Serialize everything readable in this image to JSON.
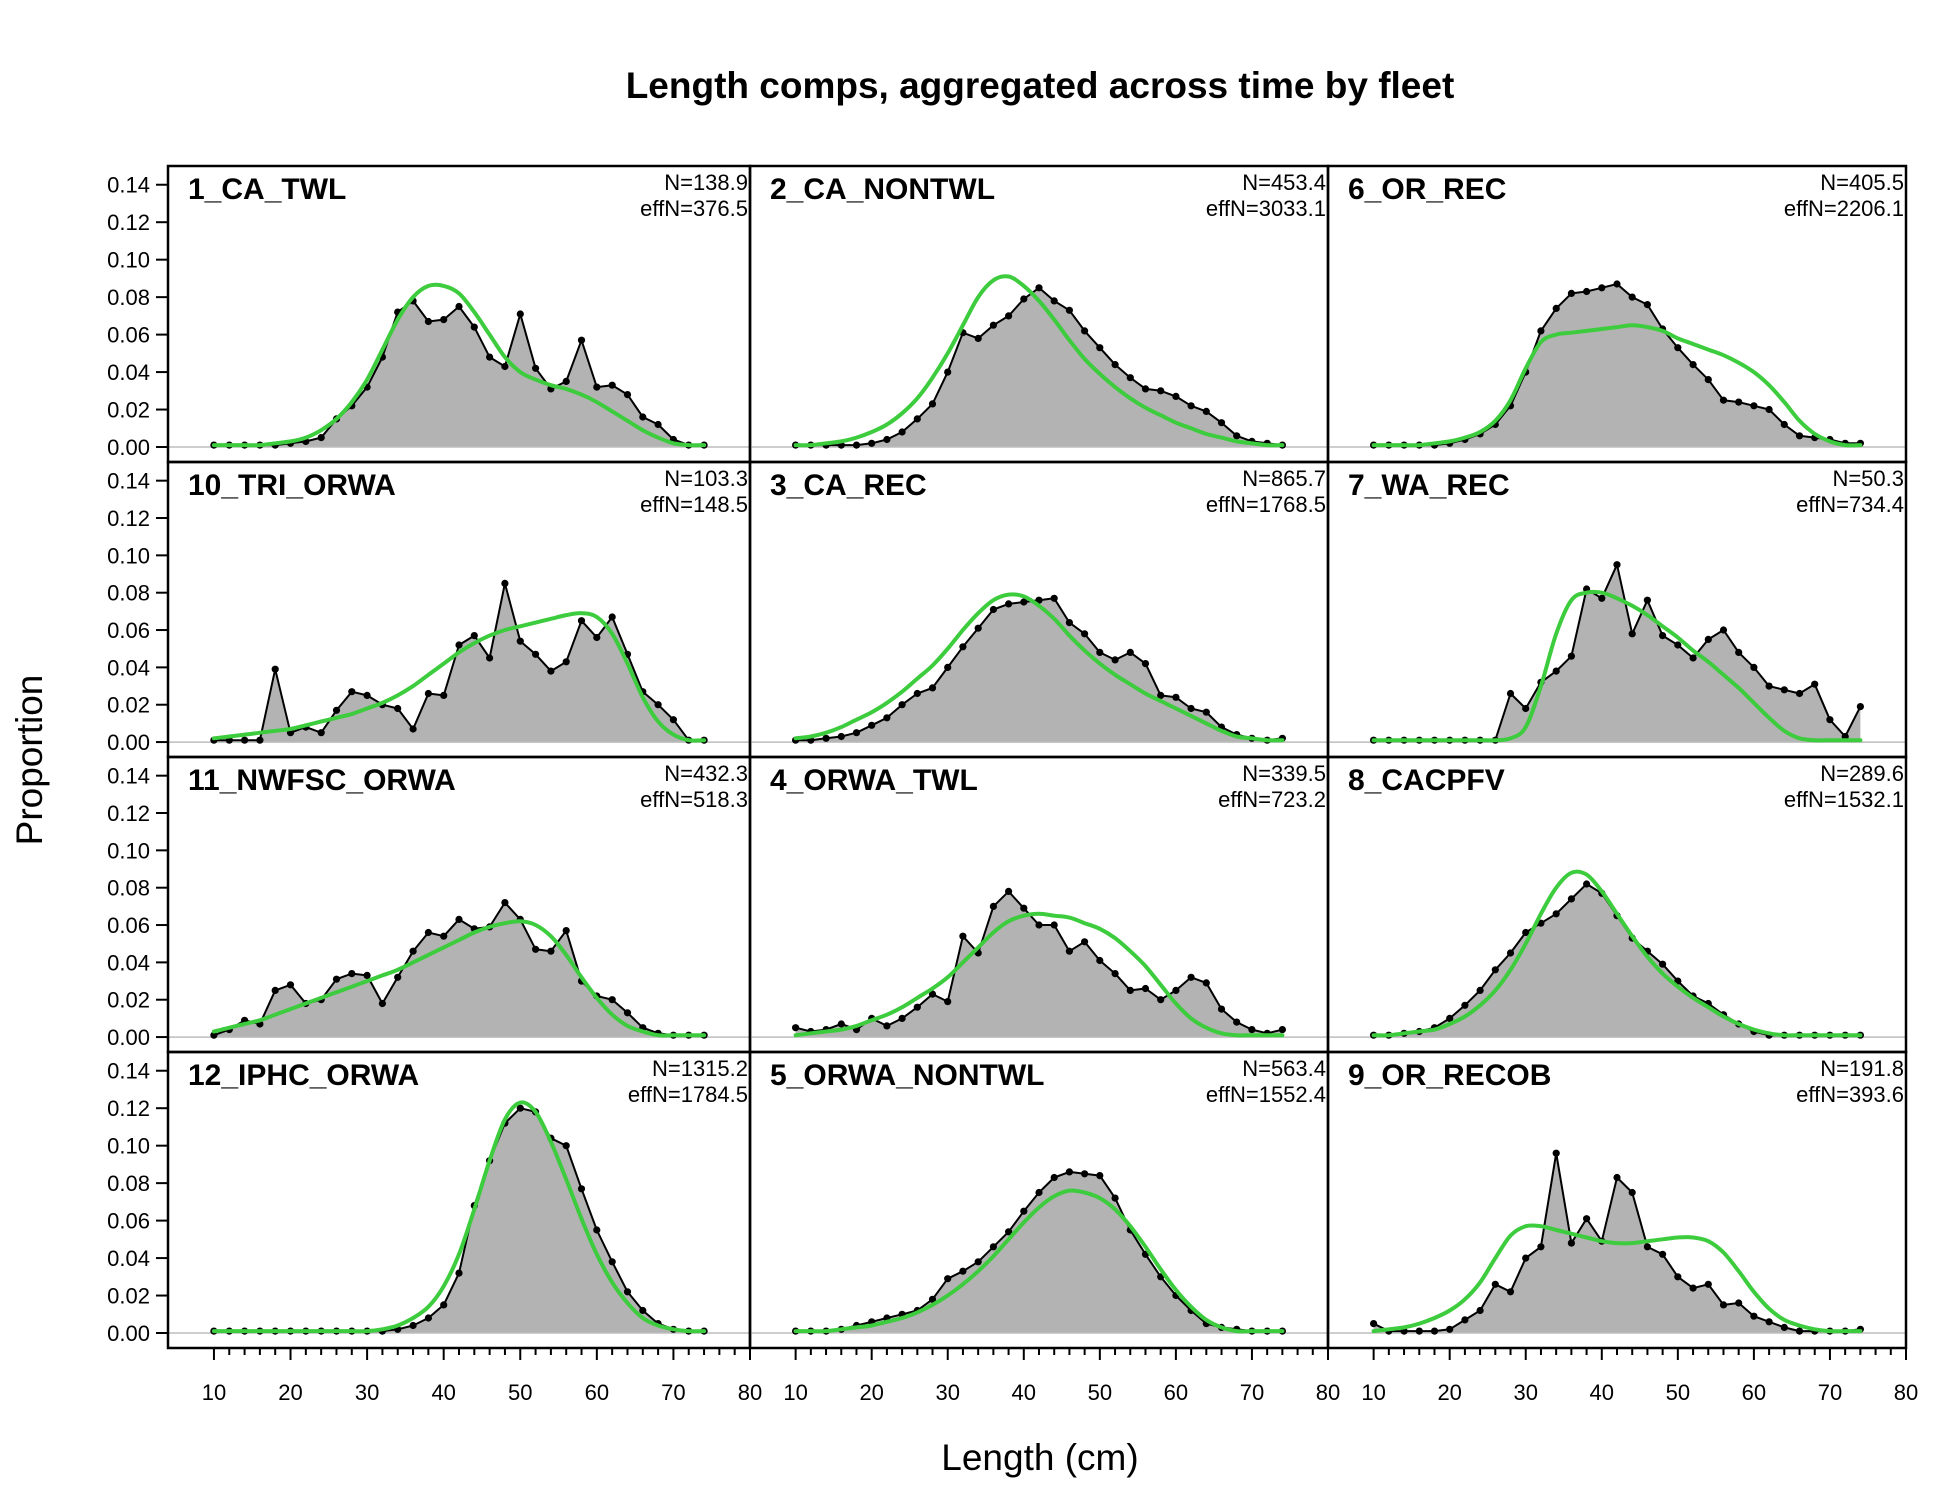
{
  "chart_data": {
    "type": "area",
    "title": "Length comps, aggregated across time by fleet",
    "xlabel": "Length (cm)",
    "ylabel": "Proportion",
    "xlim": [
      4,
      80
    ],
    "ylim": [
      -0.008,
      0.15
    ],
    "x_ticks": [
      10,
      20,
      30,
      40,
      50,
      60,
      70,
      80
    ],
    "y_ticks": [
      "0.00",
      "0.02",
      "0.04",
      "0.06",
      "0.08",
      "0.10",
      "0.12",
      "0.14"
    ],
    "x": [
      10,
      12,
      14,
      16,
      18,
      20,
      22,
      24,
      26,
      28,
      30,
      32,
      34,
      36,
      38,
      40,
      42,
      44,
      46,
      48,
      50,
      52,
      54,
      56,
      58,
      60,
      62,
      64,
      66,
      68,
      70,
      72,
      74
    ],
    "layout": "4 rows x 3 columns",
    "panels": [
      {
        "label": "1_CA_TWL",
        "n": "N=138.9",
        "effn": "effN=376.5",
        "observed": [
          0.001,
          0.001,
          0.001,
          0.001,
          0.001,
          0.002,
          0.003,
          0.005,
          0.015,
          0.022,
          0.032,
          0.048,
          0.072,
          0.078,
          0.067,
          0.068,
          0.075,
          0.064,
          0.048,
          0.043,
          0.071,
          0.042,
          0.031,
          0.035,
          0.057,
          0.032,
          0.033,
          0.028,
          0.016,
          0.012,
          0.004,
          0.001,
          0.001
        ],
        "expected": [
          0.001,
          0.001,
          0.001,
          0.001,
          0.002,
          0.003,
          0.005,
          0.009,
          0.015,
          0.024,
          0.036,
          0.052,
          0.068,
          0.08,
          0.086,
          0.086,
          0.082,
          0.072,
          0.06,
          0.048,
          0.04,
          0.036,
          0.033,
          0.031,
          0.028,
          0.024,
          0.019,
          0.014,
          0.009,
          0.005,
          0.002,
          0.001,
          0.001
        ]
      },
      {
        "label": "2_CA_NONTWL",
        "n": "N=453.4",
        "effn": "effN=3033.1",
        "observed": [
          0.001,
          0.001,
          0.001,
          0.001,
          0.001,
          0.002,
          0.004,
          0.008,
          0.015,
          0.023,
          0.04,
          0.061,
          0.058,
          0.065,
          0.07,
          0.079,
          0.085,
          0.078,
          0.073,
          0.062,
          0.053,
          0.044,
          0.037,
          0.031,
          0.03,
          0.027,
          0.022,
          0.019,
          0.013,
          0.006,
          0.003,
          0.002,
          0.001
        ],
        "expected": [
          0.001,
          0.001,
          0.002,
          0.003,
          0.005,
          0.008,
          0.012,
          0.018,
          0.026,
          0.037,
          0.05,
          0.065,
          0.08,
          0.089,
          0.091,
          0.086,
          0.078,
          0.068,
          0.057,
          0.047,
          0.039,
          0.032,
          0.026,
          0.021,
          0.017,
          0.013,
          0.01,
          0.007,
          0.005,
          0.003,
          0.002,
          0.001,
          0.001
        ]
      },
      {
        "label": "6_OR_REC",
        "n": "N=405.5",
        "effn": "effN=2206.1",
        "observed": [
          0.001,
          0.001,
          0.001,
          0.001,
          0.001,
          0.002,
          0.004,
          0.007,
          0.012,
          0.022,
          0.04,
          0.062,
          0.074,
          0.082,
          0.083,
          0.085,
          0.087,
          0.08,
          0.076,
          0.063,
          0.053,
          0.044,
          0.036,
          0.025,
          0.024,
          0.022,
          0.02,
          0.012,
          0.006,
          0.005,
          0.004,
          0.002,
          0.002
        ],
        "expected": [
          0.001,
          0.001,
          0.001,
          0.001,
          0.002,
          0.003,
          0.005,
          0.008,
          0.014,
          0.025,
          0.042,
          0.056,
          0.06,
          0.061,
          0.062,
          0.063,
          0.064,
          0.065,
          0.064,
          0.062,
          0.058,
          0.055,
          0.052,
          0.049,
          0.045,
          0.04,
          0.033,
          0.024,
          0.014,
          0.007,
          0.003,
          0.001,
          0.001
        ]
      },
      {
        "label": "10_TRI_ORWA",
        "n": "N=103.3",
        "effn": "effN=148.5",
        "observed": [
          0.001,
          0.001,
          0.001,
          0.001,
          0.039,
          0.005,
          0.008,
          0.005,
          0.017,
          0.027,
          0.025,
          0.02,
          0.018,
          0.007,
          0.026,
          0.025,
          0.052,
          0.057,
          0.045,
          0.085,
          0.054,
          0.047,
          0.038,
          0.043,
          0.065,
          0.056,
          0.067,
          0.047,
          0.027,
          0.02,
          0.012,
          0.001,
          0.001
        ],
        "expected": [
          0.002,
          0.003,
          0.004,
          0.005,
          0.006,
          0.007,
          0.009,
          0.011,
          0.013,
          0.015,
          0.018,
          0.021,
          0.025,
          0.03,
          0.036,
          0.042,
          0.048,
          0.053,
          0.057,
          0.06,
          0.062,
          0.064,
          0.066,
          0.068,
          0.069,
          0.067,
          0.058,
          0.042,
          0.024,
          0.011,
          0.004,
          0.001,
          0.001
        ]
      },
      {
        "label": "3_CA_REC",
        "n": "N=865.7",
        "effn": "effN=1768.5",
        "observed": [
          0.001,
          0.001,
          0.002,
          0.003,
          0.005,
          0.009,
          0.013,
          0.02,
          0.026,
          0.029,
          0.04,
          0.051,
          0.061,
          0.071,
          0.074,
          0.075,
          0.076,
          0.077,
          0.064,
          0.058,
          0.048,
          0.044,
          0.048,
          0.042,
          0.025,
          0.024,
          0.018,
          0.016,
          0.008,
          0.004,
          0.002,
          0.001,
          0.002
        ],
        "expected": [
          0.002,
          0.003,
          0.005,
          0.008,
          0.012,
          0.016,
          0.021,
          0.027,
          0.034,
          0.041,
          0.05,
          0.06,
          0.069,
          0.076,
          0.079,
          0.078,
          0.073,
          0.066,
          0.057,
          0.049,
          0.042,
          0.036,
          0.031,
          0.026,
          0.022,
          0.018,
          0.014,
          0.01,
          0.006,
          0.003,
          0.002,
          0.001,
          0.001
        ]
      },
      {
        "label": "7_WA_REC",
        "n": "N=50.3",
        "effn": "effN=734.4",
        "observed": [
          0.001,
          0.001,
          0.001,
          0.001,
          0.001,
          0.001,
          0.001,
          0.001,
          0.001,
          0.001,
          0.001,
          0.001,
          0.001,
          0.001,
          0.001,
          0.001,
          0.001,
          0.001,
          0.001,
          0.001,
          0.026,
          0.018,
          0.032,
          0.038,
          0.046,
          0.082,
          0.077,
          0.095,
          0.058,
          0.076,
          0.057,
          0.052,
          0.045,
          0.055,
          0.06,
          0.048,
          0.04,
          0.03,
          0.028,
          0.026,
          0.031,
          0.012,
          0.003,
          0.019
        ],
        "observed_x": [
          10,
          12,
          14,
          16,
          18,
          20,
          22,
          24,
          26,
          28,
          30,
          32,
          34,
          36,
          38,
          40,
          42,
          44,
          46,
          48,
          28,
          30,
          32,
          34,
          36,
          38,
          40,
          42,
          44,
          46,
          48,
          50,
          52,
          54,
          56,
          58,
          60,
          62,
          64,
          66,
          68,
          70,
          72,
          74
        ],
        "expected": [
          0.001,
          0.001,
          0.001,
          0.001,
          0.001,
          0.001,
          0.001,
          0.001,
          0.001,
          0.002,
          0.008,
          0.03,
          0.058,
          0.076,
          0.08,
          0.08,
          0.077,
          0.073,
          0.068,
          0.062,
          0.056,
          0.049,
          0.043,
          0.036,
          0.029,
          0.021,
          0.013,
          0.006,
          0.002,
          0.001,
          0.001,
          0.001,
          0.001
        ]
      },
      {
        "label": "11_NWFSC_ORWA",
        "n": "N=432.3",
        "effn": "effN=518.3",
        "observed": [
          0.001,
          0.004,
          0.009,
          0.007,
          0.025,
          0.028,
          0.018,
          0.02,
          0.031,
          0.034,
          0.033,
          0.018,
          0.032,
          0.046,
          0.056,
          0.054,
          0.063,
          0.058,
          0.059,
          0.072,
          0.063,
          0.047,
          0.046,
          0.057,
          0.03,
          0.022,
          0.02,
          0.013,
          0.005,
          0.002,
          0.001,
          0.001,
          0.001
        ],
        "expected": [
          0.003,
          0.005,
          0.007,
          0.009,
          0.012,
          0.015,
          0.018,
          0.021,
          0.024,
          0.027,
          0.03,
          0.033,
          0.036,
          0.04,
          0.044,
          0.048,
          0.052,
          0.056,
          0.059,
          0.061,
          0.062,
          0.06,
          0.054,
          0.044,
          0.032,
          0.021,
          0.012,
          0.006,
          0.003,
          0.001,
          0.001,
          0.001,
          0.001
        ]
      },
      {
        "label": "4_ORWA_TWL",
        "n": "N=339.5",
        "effn": "effN=723.2",
        "observed": [
          0.005,
          0.003,
          0.004,
          0.007,
          0.004,
          0.01,
          0.006,
          0.01,
          0.016,
          0.023,
          0.019,
          0.054,
          0.045,
          0.07,
          0.078,
          0.069,
          0.06,
          0.06,
          0.046,
          0.051,
          0.041,
          0.034,
          0.025,
          0.026,
          0.02,
          0.025,
          0.032,
          0.029,
          0.015,
          0.008,
          0.004,
          0.002,
          0.004
        ],
        "expected": [
          0.001,
          0.002,
          0.003,
          0.004,
          0.006,
          0.009,
          0.012,
          0.016,
          0.021,
          0.026,
          0.032,
          0.04,
          0.048,
          0.056,
          0.062,
          0.065,
          0.066,
          0.065,
          0.064,
          0.061,
          0.058,
          0.053,
          0.046,
          0.038,
          0.028,
          0.018,
          0.01,
          0.005,
          0.002,
          0.001,
          0.001,
          0.001,
          0.001
        ]
      },
      {
        "label": "8_CACPFV",
        "n": "N=289.6",
        "effn": "effN=1532.1",
        "observed": [
          0.001,
          0.001,
          0.002,
          0.003,
          0.005,
          0.01,
          0.017,
          0.025,
          0.036,
          0.045,
          0.056,
          0.061,
          0.066,
          0.074,
          0.082,
          0.077,
          0.065,
          0.053,
          0.046,
          0.039,
          0.03,
          0.022,
          0.018,
          0.012,
          0.007,
          0.003,
          0.001,
          0.001,
          0.001,
          0.001,
          0.001,
          0.001,
          0.001
        ],
        "expected": [
          0.001,
          0.001,
          0.002,
          0.003,
          0.004,
          0.007,
          0.011,
          0.017,
          0.025,
          0.036,
          0.05,
          0.066,
          0.08,
          0.088,
          0.087,
          0.078,
          0.066,
          0.054,
          0.043,
          0.034,
          0.027,
          0.021,
          0.016,
          0.011,
          0.007,
          0.004,
          0.002,
          0.001,
          0.001,
          0.001,
          0.001,
          0.001,
          0.001
        ]
      },
      {
        "label": "12_IPHC_ORWA",
        "n": "N=1315.2",
        "effn": "effN=1784.5",
        "observed": [
          0.001,
          0.001,
          0.001,
          0.001,
          0.001,
          0.001,
          0.001,
          0.001,
          0.001,
          0.001,
          0.001,
          0.001,
          0.002,
          0.004,
          0.008,
          0.015,
          0.032,
          0.068,
          0.092,
          0.112,
          0.12,
          0.118,
          0.104,
          0.1,
          0.077,
          0.055,
          0.038,
          0.022,
          0.012,
          0.005,
          0.002,
          0.001,
          0.001
        ],
        "expected": [
          0.001,
          0.001,
          0.001,
          0.001,
          0.001,
          0.001,
          0.001,
          0.001,
          0.001,
          0.001,
          0.001,
          0.002,
          0.004,
          0.008,
          0.014,
          0.025,
          0.042,
          0.066,
          0.092,
          0.114,
          0.123,
          0.118,
          0.102,
          0.082,
          0.061,
          0.042,
          0.027,
          0.016,
          0.008,
          0.004,
          0.002,
          0.001,
          0.001
        ]
      },
      {
        "label": "5_ORWA_NONTWL",
        "n": "N=563.4",
        "effn": "effN=1552.4",
        "observed": [
          0.001,
          0.001,
          0.001,
          0.002,
          0.004,
          0.006,
          0.008,
          0.01,
          0.012,
          0.018,
          0.029,
          0.033,
          0.038,
          0.046,
          0.054,
          0.065,
          0.075,
          0.083,
          0.086,
          0.085,
          0.084,
          0.072,
          0.055,
          0.042,
          0.03,
          0.02,
          0.012,
          0.005,
          0.003,
          0.002,
          0.001,
          0.001,
          0.001
        ],
        "expected": [
          0.001,
          0.001,
          0.001,
          0.002,
          0.003,
          0.004,
          0.006,
          0.008,
          0.011,
          0.015,
          0.02,
          0.026,
          0.033,
          0.041,
          0.05,
          0.059,
          0.067,
          0.073,
          0.076,
          0.075,
          0.072,
          0.066,
          0.057,
          0.046,
          0.034,
          0.023,
          0.014,
          0.007,
          0.003,
          0.001,
          0.001,
          0.001,
          0.001
        ]
      },
      {
        "label": "9_OR_RECOB",
        "n": "N=191.8",
        "effn": "effN=393.6",
        "observed": [
          0.005,
          0.001,
          0.001,
          0.001,
          0.001,
          0.002,
          0.007,
          0.012,
          0.026,
          0.022,
          0.04,
          0.046,
          0.096,
          0.048,
          0.061,
          0.049,
          0.083,
          0.075,
          0.046,
          0.042,
          0.03,
          0.024,
          0.026,
          0.015,
          0.016,
          0.009,
          0.006,
          0.003,
          0.001,
          0.001,
          0.001,
          0.001,
          0.002
        ],
        "expected": [
          0.001,
          0.002,
          0.003,
          0.005,
          0.008,
          0.012,
          0.018,
          0.027,
          0.04,
          0.052,
          0.057,
          0.057,
          0.055,
          0.053,
          0.051,
          0.049,
          0.048,
          0.048,
          0.049,
          0.05,
          0.051,
          0.051,
          0.049,
          0.043,
          0.033,
          0.022,
          0.013,
          0.007,
          0.004,
          0.002,
          0.001,
          0.001,
          0.001
        ]
      }
    ]
  }
}
